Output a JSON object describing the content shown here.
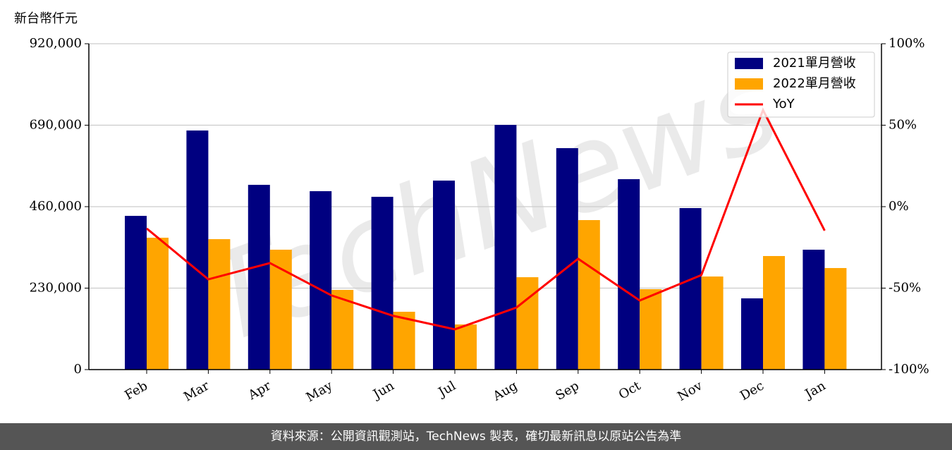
{
  "chart_data": {
    "type": "bar_line",
    "y_label": "新台幣仟元",
    "categories": [
      "Feb",
      "Mar",
      "Apr",
      "May",
      "Jun",
      "Jul",
      "Aug",
      "Sep",
      "Oct",
      "Nov",
      "Dec",
      "Jan"
    ],
    "series": [
      {
        "name": "2021單月營收",
        "color": "#000080",
        "type": "bar",
        "values": [
          434000,
          675000,
          521600,
          503700,
          487800,
          533600,
          690900,
          625200,
          537600,
          456000,
          201100,
          338500
        ]
      },
      {
        "name": "2022單月營收",
        "color": "#ffa500",
        "type": "bar",
        "values": [
          372300,
          368300,
          338500,
          225000,
          163300,
          127400,
          260800,
          422100,
          227000,
          262800,
          320600,
          286700
        ]
      },
      {
        "name": "YoY",
        "color": "#ff0000",
        "type": "line",
        "axis": "y2",
        "values": [
          -13.4,
          -44.6,
          -34.6,
          -54.5,
          -67,
          -75.3,
          -61.9,
          -32,
          -57.6,
          -42,
          59.3,
          -14.7
        ]
      }
    ],
    "ylim": [
      0,
      920000
    ],
    "yticks": [
      0,
      {
        "value": 230000,
        "label": "230,000"
      },
      {
        "value": 460000,
        "label": "460,000"
      },
      {
        "value": 690000,
        "label": "690,000"
      },
      {
        "value": 920000,
        "label": "920,000"
      }
    ],
    "y2lim": [
      -100,
      100
    ],
    "y2ticks": [
      {
        "value": -100,
        "label": "-100%"
      },
      {
        "value": -50,
        "label": "-50%"
      },
      {
        "value": 0,
        "label": "0%"
      },
      {
        "value": 50,
        "label": "50%"
      },
      {
        "value": 100,
        "label": "100%"
      }
    ],
    "grid": true,
    "legend": "upper right",
    "watermark": "TechNews",
    "source": "資料來源：公開資訊觀測站，TechNews 製表，確切最新訊息以原站公告為準"
  }
}
